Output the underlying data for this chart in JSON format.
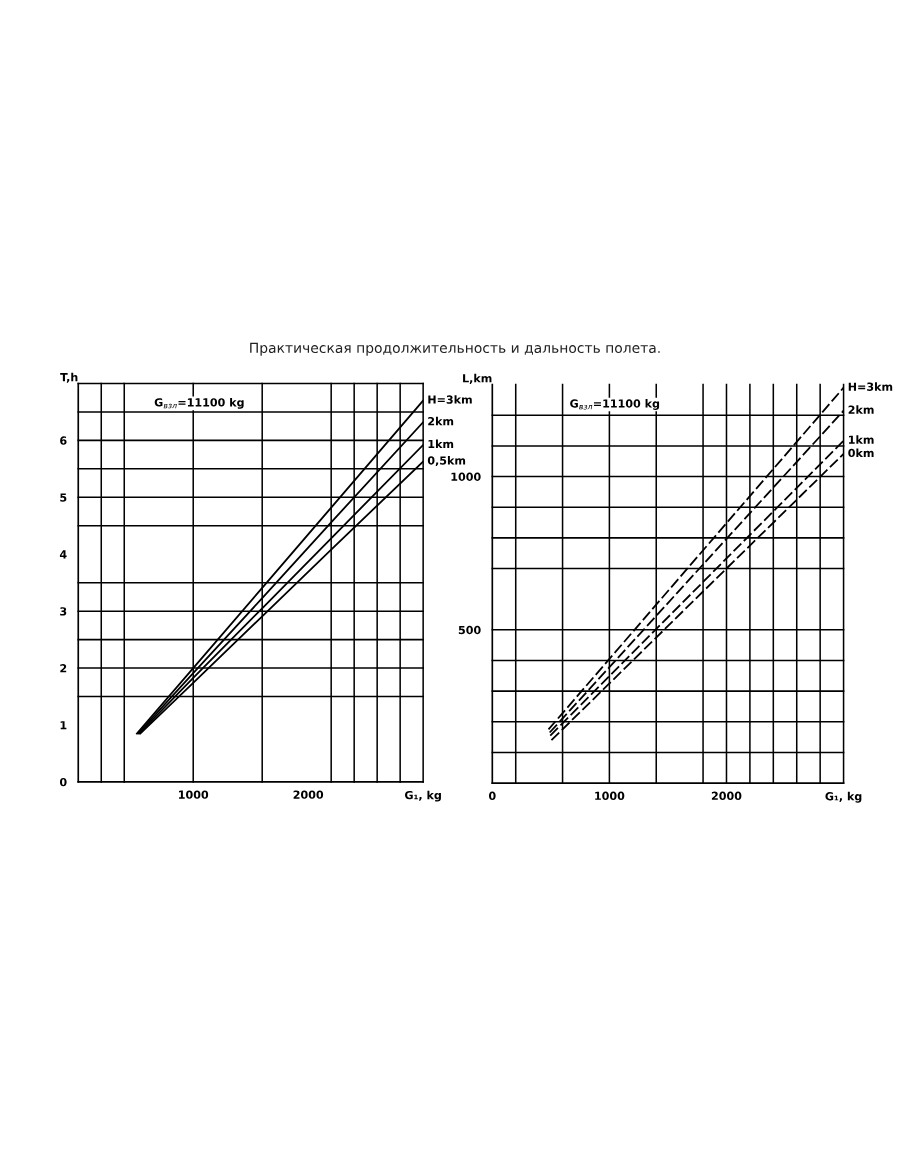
{
  "chart_data": [
    {
      "type": "line",
      "title": "Практическая продолжительность и дальность полета.",
      "ylabel": "T,h",
      "xlabel": "G₁, kg",
      "annotations": [
        "G$_{взл}$=11100 kg"
      ],
      "xlim": [
        0,
        3000
      ],
      "ylim": [
        0,
        7
      ],
      "xticks": [
        1000,
        2000
      ],
      "yticks": [
        0,
        1,
        2,
        3,
        4,
        5,
        6
      ],
      "grid": false,
      "legend": false,
      "line_style": "solid",
      "marker": "none",
      "ref_lines": [
        {
          "axis": "y",
          "value": 1.5,
          "color": "#000000"
        },
        {
          "axis": "y",
          "value": 2,
          "color": "#000000"
        },
        {
          "axis": "y",
          "value": 2.5,
          "color": "#000000"
        },
        {
          "axis": "y",
          "value": 3,
          "color": "#000000"
        },
        {
          "axis": "y",
          "value": 3.5,
          "color": "#000000"
        },
        {
          "axis": "y",
          "value": 4.5,
          "color": "#000000"
        },
        {
          "axis": "y",
          "value": 5,
          "color": "#000000"
        },
        {
          "axis": "y",
          "value": 5.5,
          "color": "#000000"
        },
        {
          "axis": "y",
          "value": 6,
          "color": "#000000"
        },
        {
          "axis": "y",
          "value": 6.5,
          "color": "#000000"
        },
        {
          "axis": "x",
          "value": 200,
          "color": "#000000"
        },
        {
          "axis": "x",
          "value": 400,
          "color": "#000000"
        },
        {
          "axis": "x",
          "value": 1000,
          "color": "#000000"
        },
        {
          "axis": "x",
          "value": 1600,
          "color": "#000000"
        },
        {
          "axis": "x",
          "value": 2200,
          "color": "#000000"
        },
        {
          "axis": "x",
          "value": 2400,
          "color": "#000000"
        },
        {
          "axis": "x",
          "value": 2600,
          "color": "#000000"
        },
        {
          "axis": "x",
          "value": 2800,
          "color": "#000000"
        }
      ],
      "series": [
        {
          "name": "H=3km",
          "color": "#000000",
          "x": [
            510,
            1000,
            1600,
            2200,
            3000
          ],
          "values": [
            0.85,
            2.0,
            3.41,
            4.82,
            6.7
          ]
        },
        {
          "name": "2km",
          "color": "#000000",
          "x": [
            520,
            1000,
            1600,
            2200,
            3000
          ],
          "values": [
            0.85,
            1.91,
            3.23,
            4.56,
            6.32
          ]
        },
        {
          "name": "1km",
          "color": "#000000",
          "x": [
            530,
            1000,
            1600,
            2200,
            3000
          ],
          "values": [
            0.85,
            1.83,
            3.05,
            4.28,
            5.92
          ]
        },
        {
          "name": "0,5km",
          "color": "#000000",
          "x": [
            540,
            1000,
            1600,
            2200,
            3000
          ],
          "values": [
            0.85,
            1.74,
            2.91,
            4.08,
            5.63
          ]
        }
      ]
    },
    {
      "type": "line",
      "ylabel": "L,km",
      "xlabel": "G₁, kg",
      "annotations": [
        "G$_{взл}$=11100 kg"
      ],
      "xlim": [
        0,
        3000
      ],
      "ylim": [
        0,
        1300
      ],
      "xticks": [
        0,
        1000,
        2000
      ],
      "yticks": [
        500,
        1000
      ],
      "grid": false,
      "legend": false,
      "line_style": "dashed",
      "marker": "none",
      "ref_lines": [
        {
          "axis": "y",
          "value": 100,
          "color": "#000000"
        },
        {
          "axis": "y",
          "value": 200,
          "color": "#000000"
        },
        {
          "axis": "y",
          "value": 300,
          "color": "#000000"
        },
        {
          "axis": "y",
          "value": 400,
          "color": "#000000"
        },
        {
          "axis": "y",
          "value": 500,
          "color": "#000000"
        },
        {
          "axis": "y",
          "value": 700,
          "color": "#000000"
        },
        {
          "axis": "y",
          "value": 800,
          "color": "#000000"
        },
        {
          "axis": "y",
          "value": 900,
          "color": "#000000"
        },
        {
          "axis": "y",
          "value": 1000,
          "color": "#000000"
        },
        {
          "axis": "y",
          "value": 1100,
          "color": "#000000"
        },
        {
          "axis": "y",
          "value": 1200,
          "color": "#000000"
        },
        {
          "axis": "x",
          "value": 200,
          "color": "#000000"
        },
        {
          "axis": "x",
          "value": 600,
          "color": "#000000"
        },
        {
          "axis": "x",
          "value": 1000,
          "color": "#000000"
        },
        {
          "axis": "x",
          "value": 1400,
          "color": "#000000"
        },
        {
          "axis": "x",
          "value": 1800,
          "color": "#000000"
        },
        {
          "axis": "x",
          "value": 2000,
          "color": "#000000"
        },
        {
          "axis": "x",
          "value": 2200,
          "color": "#000000"
        },
        {
          "axis": "x",
          "value": 2400,
          "color": "#000000"
        },
        {
          "axis": "x",
          "value": 2600,
          "color": "#000000"
        },
        {
          "axis": "x",
          "value": 2800,
          "color": "#000000"
        }
      ],
      "series": [
        {
          "name": "H=3km",
          "color": "#000000",
          "x": [
            480,
            1000,
            2000,
            3000
          ],
          "values": [
            175,
            405,
            848,
            1290
          ]
        },
        {
          "name": "2km",
          "color": "#000000",
          "x": [
            490,
            1000,
            2000,
            3000
          ],
          "values": [
            165,
            378,
            797,
            1215
          ]
        },
        {
          "name": "1km",
          "color": "#000000",
          "x": [
            495,
            1000,
            2000,
            3000
          ],
          "values": [
            155,
            349,
            733,
            1117
          ]
        },
        {
          "name": "0km",
          "color": "#000000",
          "x": [
            505,
            1000,
            2000,
            3000
          ],
          "values": [
            140,
            325,
            700,
            1074
          ]
        }
      ]
    }
  ]
}
